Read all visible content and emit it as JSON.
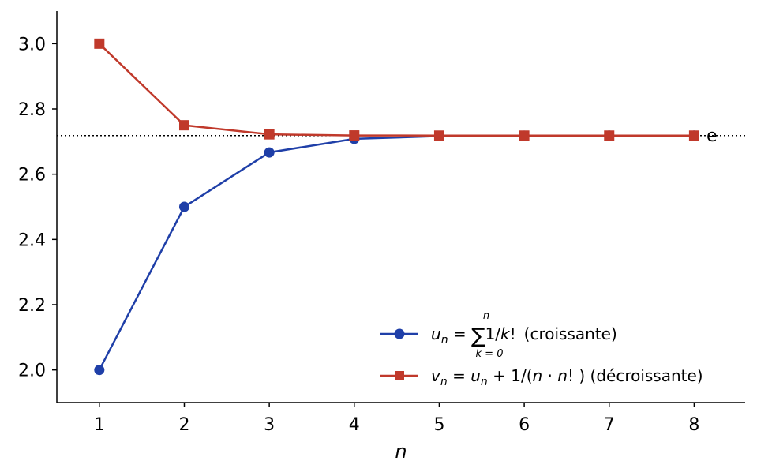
{
  "chart_data": {
    "type": "line",
    "xlabel": "n",
    "ylabel": "",
    "title": "",
    "x": [
      1,
      2,
      3,
      4,
      5,
      6,
      7,
      8
    ],
    "xlim": [
      0.5,
      8.6
    ],
    "ylim": [
      1.9,
      3.1
    ],
    "xticks": [
      "1",
      "2",
      "3",
      "4",
      "5",
      "6",
      "7",
      "8"
    ],
    "yticks": [
      "2.0",
      "2.2",
      "2.4",
      "2.6",
      "2.8",
      "3.0"
    ],
    "ytick_values": [
      2.0,
      2.2,
      2.4,
      2.6,
      2.8,
      3.0
    ],
    "series": [
      {
        "name": "u_n = Σ_{k=0}^{n} 1/k! (croissante)",
        "color": "#1f3fa8",
        "marker": "circle",
        "values": [
          2.0,
          2.5,
          2.6667,
          2.7083,
          2.7167,
          2.7181,
          2.7183,
          2.7183
        ]
      },
      {
        "name": "v_n = u_n + 1/(n·n!) (décroissante)",
        "color": "#c0392b",
        "marker": "square",
        "values": [
          3.0,
          2.75,
          2.7222,
          2.7188,
          2.7183,
          2.7183,
          2.7183,
          2.7183
        ]
      }
    ],
    "reference_line": {
      "label": "e",
      "y": 2.7183,
      "style": "dotted",
      "color": "#000000"
    },
    "legend_position": "lower-right",
    "grid": false
  },
  "legend": {
    "u_main": "u",
    "u_sub": "n",
    "u_eq": " = ",
    "u_sigma": "∑",
    "u_sigma_top": "n",
    "u_sigma_bottom": "k = 0",
    "u_term": "1/",
    "u_k": "k",
    "u_fact": "!",
    "u_desc": "(croissante)",
    "v_expr_1": "v",
    "v_sub": "n",
    "v_expr_2": " = ",
    "v_expr_3": "u",
    "v_sub2": "n",
    "v_expr_4": " + 1/(",
    "v_expr_5": "n",
    "v_expr_6": " · ",
    "v_expr_7": "n",
    "v_expr_8": "! )",
    "v_desc": " (décroissante)"
  }
}
